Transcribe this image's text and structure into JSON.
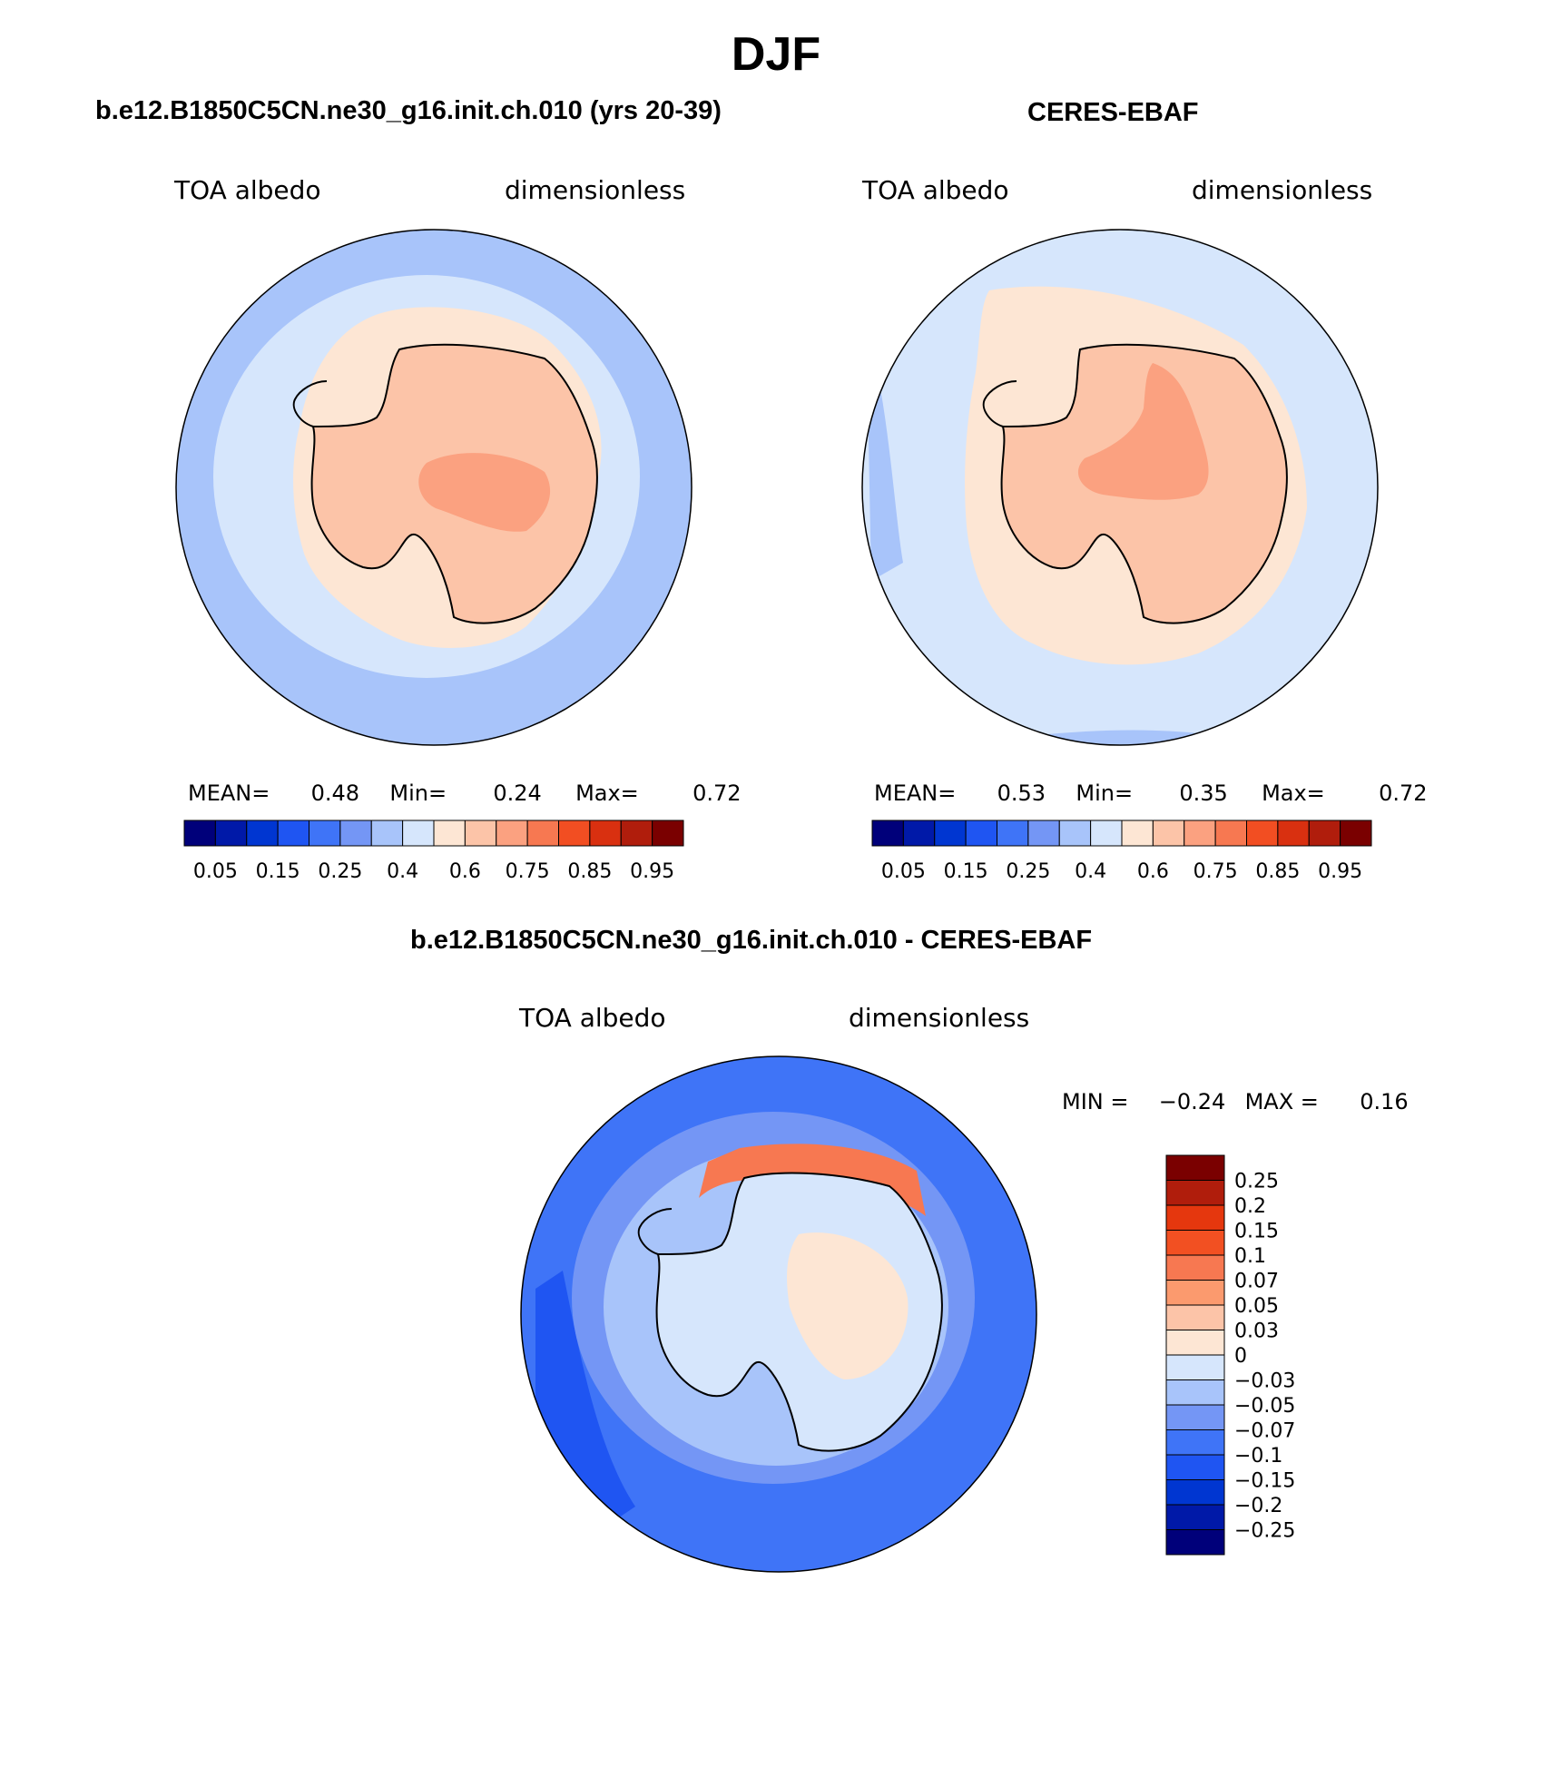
{
  "figure": {
    "title": "DJF"
  },
  "panels": [
    {
      "id": "model",
      "title": "b.e12.B1850C5CN.ne30_g16.init.ch.010 (yrs 20-39)",
      "left_label": "TOA albedo",
      "right_label": "dimensionless",
      "stats": {
        "mean_label": "MEAN=",
        "mean": "0.48",
        "min_label": "Min=",
        "min": "0.24",
        "max_label": "Max=",
        "max": "0.72"
      },
      "field": {
        "ocean_outer": 0.25,
        "sea_ice_zone": 0.35,
        "coastal_ring": 0.55,
        "continent": 0.65,
        "plateau": 0.7
      }
    },
    {
      "id": "obs",
      "title": "CERES-EBAF",
      "left_label": "TOA albedo",
      "right_label": "dimensionless",
      "stats": {
        "mean_label": "MEAN=",
        "mean": "0.53",
        "min_label": "Min=",
        "min": "0.35",
        "max_label": "Max=",
        "max": "0.72"
      },
      "field": {
        "ocean_outer": 0.35,
        "sea_ice_zone": 0.45,
        "coastal_ring": 0.55,
        "continent": 0.65,
        "plateau": 0.7
      }
    }
  ],
  "colorbar_abs": {
    "colors": [
      "#00007a",
      "#0019a8",
      "#0036d1",
      "#1f55f2",
      "#3f74f7",
      "#7496f5",
      "#a8c4fa",
      "#d6e6fc",
      "#fde6d4",
      "#fcc4a8",
      "#fba180",
      "#f77851",
      "#f24e22",
      "#d93010",
      "#b01d0c",
      "#7a0000"
    ],
    "tick_labels": [
      "0.05",
      "0.15",
      "0.25",
      "0.4",
      "0.6",
      "0.75",
      "0.85",
      "0.95"
    ]
  },
  "difference": {
    "title": "b.e12.B1850C5CN.ne30_g16.init.ch.010 - CERES-EBAF",
    "left_label": "TOA albedo",
    "right_label": "dimensionless",
    "min_label": "MIN =",
    "min": "−0.24",
    "max_label": "MAX =",
    "max": "0.16",
    "colorbar": {
      "colors_top_to_bottom": [
        "#7a0000",
        "#b01d0c",
        "#e5370e",
        "#f25022",
        "#f77851",
        "#fb9a6e",
        "#fcc4a8",
        "#fde6d4",
        "#d6e6fc",
        "#a8c4fa",
        "#7496f5",
        "#3f74f7",
        "#1f55f2",
        "#0036d1",
        "#0019a8",
        "#00007a"
      ],
      "labels_top_to_bottom": [
        "0.25",
        "0.2",
        "0.15",
        "0.1",
        "0.07",
        "0.05",
        "0.03",
        "0",
        "−0.03",
        "−0.05",
        "−0.07",
        "−0.1",
        "−0.15",
        "−0.2",
        "−0.25"
      ]
    }
  }
}
